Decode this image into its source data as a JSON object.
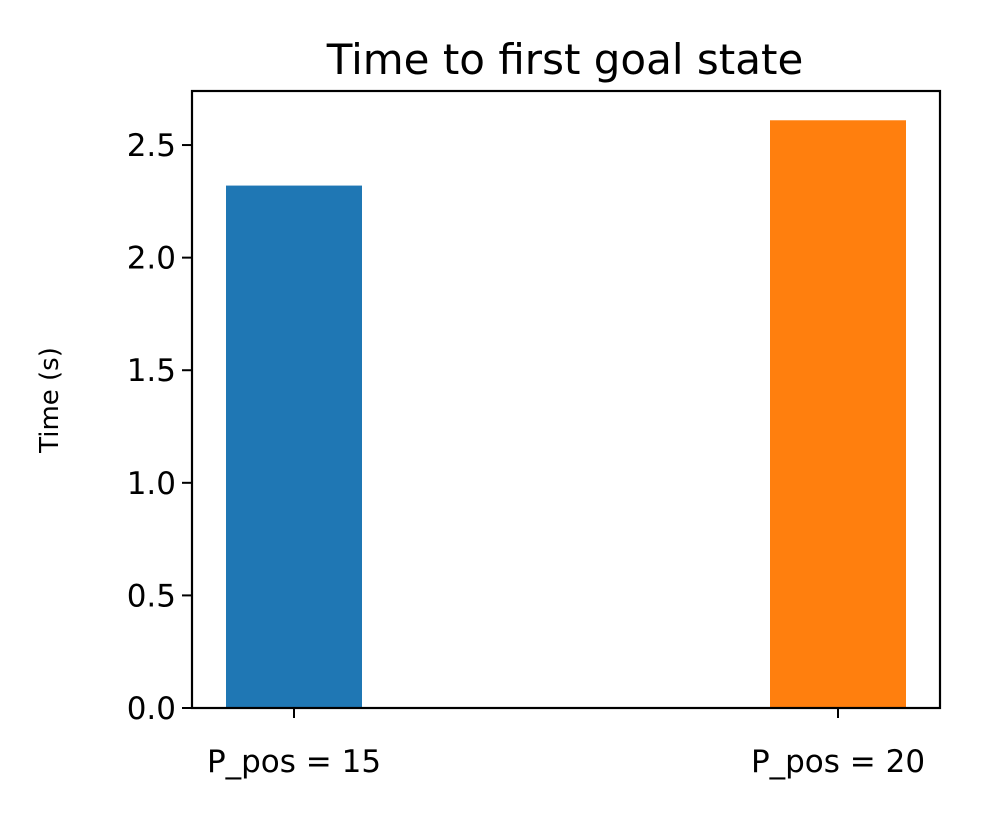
{
  "chart_data": {
    "type": "bar",
    "title": "Time to first goal state",
    "xlabel": "",
    "ylabel": "Time (s)",
    "categories": [
      "P_pos = 15",
      "P_pos = 20"
    ],
    "values": [
      2.32,
      2.61
    ],
    "bar_colors": [
      "#1f77b4",
      "#ff7f0e"
    ],
    "ylim": [
      0,
      2.74
    ],
    "yticks": [
      0.0,
      0.5,
      1.0,
      1.5,
      2.0,
      2.5
    ],
    "ytick_labels": [
      "0.0",
      "0.5",
      "1.0",
      "1.5",
      "2.0",
      "2.5"
    ],
    "grid": false,
    "legend": "none"
  }
}
